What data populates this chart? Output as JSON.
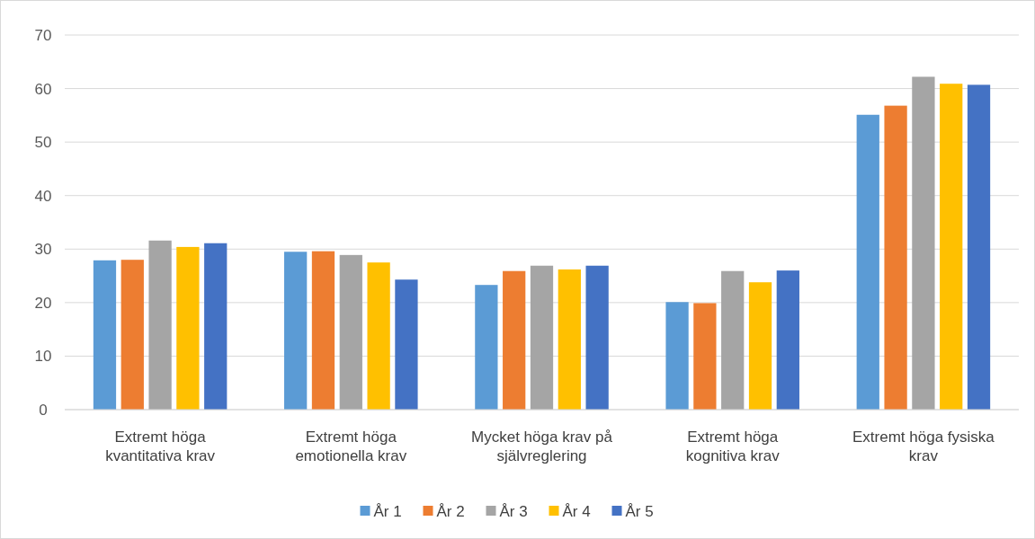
{
  "chart_data": {
    "type": "bar",
    "categories": [
      "Extremt höga kvantitativa krav",
      "Extremt höga emotionella krav",
      "Mycket höga krav på självreglering",
      "Extremt höga kognitiva krav",
      "Extremt höga fysiska krav"
    ],
    "series": [
      {
        "name": "År 1",
        "color": "#5b9bd5",
        "values": [
          27.9,
          29.5,
          23.3,
          20.1,
          55.1
        ]
      },
      {
        "name": "År 2",
        "color": "#ed7d31",
        "values": [
          28,
          29.6,
          25.9,
          19.9,
          56.8
        ]
      },
      {
        "name": "År 3",
        "color": "#a5a5a5",
        "values": [
          31.6,
          28.9,
          26.9,
          25.9,
          62.2
        ]
      },
      {
        "name": "År 4",
        "color": "#ffc000",
        "values": [
          30.4,
          27.5,
          26.2,
          23.8,
          60.9
        ]
      },
      {
        "name": "År 5",
        "color": "#4472c4",
        "values": [
          31.1,
          24.3,
          26.9,
          26,
          60.7
        ]
      }
    ],
    "ylim": [
      0,
      70
    ],
    "yticks": [
      0,
      10,
      20,
      30,
      40,
      50,
      60,
      70
    ],
    "grid": "y",
    "legend": "bottom"
  }
}
